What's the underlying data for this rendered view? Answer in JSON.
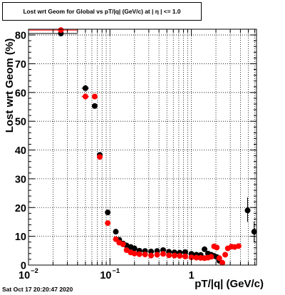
{
  "title": "Lost wrt Geom for Global vs pT/|q| (GeV/c) at | η | <= 1.0",
  "timestamp": "Sat Oct 17 20:20:47 2020",
  "chart_data": {
    "type": "scatter",
    "xlabel": "pT/|q| (GeV/c)",
    "ylabel": "Lost wrt Geom (%)",
    "xscale": "log",
    "xlim": [
      0.01,
      6.3
    ],
    "ylim": [
      0,
      82
    ],
    "grid": true,
    "x_tick_labels": [
      {
        "value": 0.01,
        "base": "10",
        "exp": "−2"
      },
      {
        "value": 0.1,
        "base": "10",
        "exp": "−1"
      },
      {
        "value": 1,
        "base": "1",
        "exp": ""
      }
    ],
    "y_ticks": [
      0,
      10,
      20,
      30,
      40,
      50,
      60,
      70,
      80
    ],
    "y_tick_labels": [
      "0",
      "10",
      "20",
      "30",
      "40",
      "50",
      "60",
      "70",
      "80"
    ],
    "series": [
      {
        "color": "#000000",
        "points": [
          {
            "x": 0.025,
            "y": 80.5,
            "xerr": [
              0.01,
              0.04
            ]
          },
          {
            "x": 0.05,
            "y": 61.5,
            "xerr": [
              0.045,
              0.055
            ]
          },
          {
            "x": 0.065,
            "y": 55.3
          },
          {
            "x": 0.075,
            "y": 38.3
          },
          {
            "x": 0.094,
            "y": 18.3,
            "xerr": [
              0.088,
              0.1
            ]
          },
          {
            "x": 0.118,
            "y": 11.6
          },
          {
            "x": 0.13,
            "y": 8.8
          },
          {
            "x": 0.145,
            "y": 7.5
          },
          {
            "x": 0.16,
            "y": 6.8
          },
          {
            "x": 0.18,
            "y": 6.3
          },
          {
            "x": 0.2,
            "y": 5.8
          },
          {
            "x": 0.23,
            "y": 5.0
          },
          {
            "x": 0.27,
            "y": 4.9
          },
          {
            "x": 0.32,
            "y": 4.7
          },
          {
            "x": 0.38,
            "y": 4.9
          },
          {
            "x": 0.45,
            "y": 5.2
          },
          {
            "x": 0.53,
            "y": 4.6
          },
          {
            "x": 0.62,
            "y": 4.4
          },
          {
            "x": 0.72,
            "y": 4.3
          },
          {
            "x": 0.84,
            "y": 4.5
          },
          {
            "x": 1.0,
            "y": 3.9
          },
          {
            "x": 1.15,
            "y": 3.6
          },
          {
            "x": 1.3,
            "y": 3.5
          },
          {
            "x": 1.45,
            "y": 5.5
          },
          {
            "x": 1.6,
            "y": 4.0
          },
          {
            "x": 1.75,
            "y": 3.6
          },
          {
            "x": 1.9,
            "y": 3.2
          },
          {
            "x": 2.05,
            "y": 2.8
          },
          {
            "x": 2.2,
            "y": 1.5
          },
          {
            "x": 4.9,
            "y": 19.0,
            "yerr": [
              15.0,
              23.5
            ]
          },
          {
            "x": 5.9,
            "y": 11.6,
            "yerr": [
              8.0,
              15.2
            ]
          }
        ]
      },
      {
        "color": "#ff0000",
        "points": [
          {
            "x": 0.025,
            "y": 81.7,
            "xerr": [
              0.01,
              0.04
            ]
          },
          {
            "x": 0.05,
            "y": 58.6,
            "xerr": [
              0.045,
              0.055
            ]
          },
          {
            "x": 0.065,
            "y": 58.6
          },
          {
            "x": 0.075,
            "y": 37.6
          },
          {
            "x": 0.094,
            "y": 14.6,
            "xerr": [
              0.088,
              0.1
            ]
          },
          {
            "x": 0.118,
            "y": 9.0
          },
          {
            "x": 0.13,
            "y": 7.8
          },
          {
            "x": 0.145,
            "y": 7.2
          },
          {
            "x": 0.16,
            "y": 5.2
          },
          {
            "x": 0.18,
            "y": 4.4
          },
          {
            "x": 0.2,
            "y": 4.0
          },
          {
            "x": 0.23,
            "y": 3.8
          },
          {
            "x": 0.27,
            "y": 3.7
          },
          {
            "x": 0.32,
            "y": 3.3
          },
          {
            "x": 0.38,
            "y": 3.6
          },
          {
            "x": 0.45,
            "y": 3.9
          },
          {
            "x": 0.53,
            "y": 3.4
          },
          {
            "x": 0.62,
            "y": 3.3
          },
          {
            "x": 0.72,
            "y": 3.2
          },
          {
            "x": 0.84,
            "y": 3.0
          },
          {
            "x": 1.0,
            "y": 2.7
          },
          {
            "x": 1.15,
            "y": 2.6
          },
          {
            "x": 1.3,
            "y": 2.5
          },
          {
            "x": 1.45,
            "y": 2.4
          },
          {
            "x": 1.6,
            "y": 2.6
          },
          {
            "x": 1.75,
            "y": 2.9
          },
          {
            "x": 1.9,
            "y": 6.5
          },
          {
            "x": 2.05,
            "y": 6.1
          },
          {
            "x": 2.2,
            "y": 2.4
          },
          {
            "x": 2.4,
            "y": 0.8
          },
          {
            "x": 2.6,
            "y": 3.6
          },
          {
            "x": 2.8,
            "y": 5.8
          },
          {
            "x": 3.1,
            "y": 6.4
          },
          {
            "x": 3.4,
            "y": 6.3
          },
          {
            "x": 3.8,
            "y": 6.6
          }
        ]
      }
    ]
  }
}
